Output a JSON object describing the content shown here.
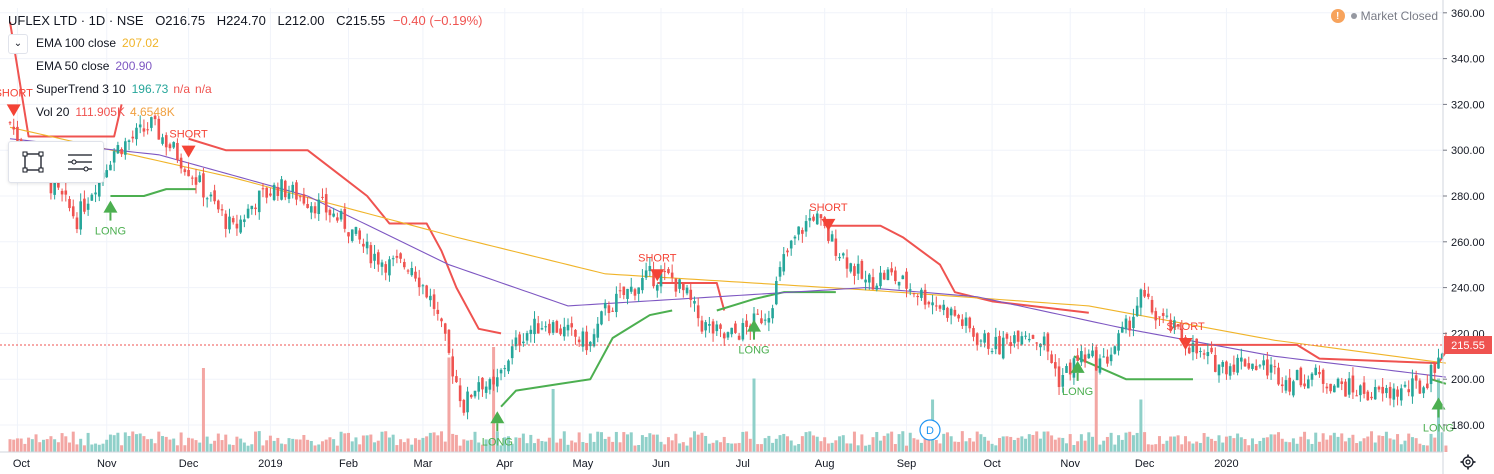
{
  "header": {
    "symbol": "UFLEX LTD · 1D · NSE",
    "open": "O216.75",
    "high": "H224.70",
    "low": "L212.00",
    "close": "C215.55",
    "change": "−0.40 (−0.19%)",
    "market_status": "Market Closed"
  },
  "indicators": [
    {
      "name": "EMA 100 close",
      "values": [
        "207.02"
      ],
      "colors": [
        "#f0b429"
      ]
    },
    {
      "name": "EMA 50 close",
      "values": [
        "200.90"
      ],
      "colors": [
        "#7e57c2"
      ]
    },
    {
      "name": "SuperTrend 3 10",
      "values": [
        "196.73",
        "n/a",
        "n/a"
      ],
      "colors": [
        "#26a69a",
        "#ef5350",
        "#ef5350"
      ]
    },
    {
      "name": "Vol 20",
      "values": [
        "111.905K",
        "4.6548K"
      ],
      "colors": [
        "#ef5350",
        "#f0a040"
      ]
    }
  ],
  "price_label": "215.55",
  "event_marker": "D",
  "colors": {
    "up": "#26a69a",
    "down": "#ef5350",
    "ema100": "#f0b429",
    "ema50": "#7e57c2",
    "st_up": "#4caf50",
    "st_down": "#ef5350",
    "vol_up": "#8fd0c9",
    "vol_down": "#f3a6a3"
  },
  "icons": [
    "rectangle-tool-icon",
    "lines-tool-icon",
    "chevron-down-icon",
    "warning-icon",
    "gear-icon"
  ],
  "chart_data": {
    "type": "candlestick",
    "x_tick_labels": [
      "Oct",
      "Nov",
      "Dec",
      "2019",
      "Feb",
      "Mar",
      "Apr",
      "May",
      "Jun",
      "Jul",
      "Aug",
      "Sep",
      "Oct",
      "Nov",
      "Dec",
      "2020"
    ],
    "y_tick_labels": [
      "180.00",
      "200.00",
      "220.00",
      "240.00",
      "260.00",
      "280.00",
      "300.00",
      "320.00",
      "340.00",
      "360.00"
    ],
    "ylim": [
      170,
      365
    ],
    "last_price": 215.55,
    "price_anchors": [
      [
        0,
        312
      ],
      [
        4,
        300
      ],
      [
        10,
        287
      ],
      [
        18,
        270
      ],
      [
        22,
        283
      ],
      [
        28,
        300
      ],
      [
        32,
        304
      ],
      [
        38,
        311
      ],
      [
        44,
        300
      ],
      [
        48,
        292
      ],
      [
        54,
        278
      ],
      [
        60,
        265
      ],
      [
        66,
        278
      ],
      [
        72,
        284
      ],
      [
        78,
        280
      ],
      [
        84,
        275
      ],
      [
        90,
        268
      ],
      [
        96,
        256
      ],
      [
        102,
        250
      ],
      [
        108,
        250
      ],
      [
        114,
        232
      ],
      [
        118,
        210
      ],
      [
        122,
        188
      ],
      [
        126,
        200
      ],
      [
        130,
        195
      ],
      [
        134,
        210
      ],
      [
        138,
        220
      ],
      [
        144,
        225
      ],
      [
        150,
        220
      ],
      [
        156,
        215
      ],
      [
        160,
        230
      ],
      [
        166,
        238
      ],
      [
        172,
        245
      ],
      [
        178,
        244
      ],
      [
        182,
        236
      ],
      [
        186,
        224
      ],
      [
        192,
        218
      ],
      [
        198,
        222
      ],
      [
        204,
        230
      ],
      [
        208,
        252
      ],
      [
        212,
        264
      ],
      [
        216,
        272
      ],
      [
        220,
        262
      ],
      [
        226,
        250
      ],
      [
        230,
        242
      ],
      [
        236,
        246
      ],
      [
        242,
        240
      ],
      [
        248,
        234
      ],
      [
        254,
        228
      ],
      [
        260,
        218
      ],
      [
        266,
        214
      ],
      [
        272,
        222
      ],
      [
        278,
        216
      ],
      [
        282,
        200
      ],
      [
        288,
        210
      ],
      [
        294,
        207
      ],
      [
        300,
        222
      ],
      [
        304,
        236
      ],
      [
        308,
        228
      ],
      [
        314,
        220
      ],
      [
        320,
        210
      ],
      [
        326,
        206
      ],
      [
        332,
        208
      ],
      [
        338,
        205
      ],
      [
        344,
        199
      ],
      [
        350,
        202
      ],
      [
        356,
        198
      ],
      [
        362,
        195
      ],
      [
        368,
        193
      ],
      [
        374,
        195
      ],
      [
        380,
        197
      ],
      [
        384,
        210
      ],
      [
        386,
        215.55
      ]
    ],
    "ema100_anchors": [
      [
        0,
        310
      ],
      [
        60,
        288
      ],
      [
        120,
        262
      ],
      [
        160,
        246
      ],
      [
        230,
        239
      ],
      [
        290,
        232
      ],
      [
        340,
        217
      ],
      [
        386,
        207.02
      ]
    ],
    "ema50_anchors": [
      [
        0,
        305
      ],
      [
        40,
        298
      ],
      [
        80,
        280
      ],
      [
        118,
        250
      ],
      [
        150,
        232
      ],
      [
        190,
        236
      ],
      [
        230,
        240
      ],
      [
        260,
        236
      ],
      [
        300,
        222
      ],
      [
        340,
        210
      ],
      [
        386,
        200.9
      ]
    ],
    "supertrend": [
      {
        "trend": "down",
        "points": [
          [
            0,
            356
          ],
          [
            5,
            306
          ],
          [
            28,
            306
          ],
          [
            30,
            320
          ]
        ]
      },
      {
        "trend": "up",
        "points": [
          [
            27,
            280
          ],
          [
            36,
            280
          ],
          [
            42,
            283
          ],
          [
            50,
            283
          ]
        ]
      },
      {
        "trend": "down",
        "points": [
          [
            48,
            305
          ],
          [
            58,
            300
          ],
          [
            80,
            300
          ],
          [
            88,
            290
          ],
          [
            96,
            280
          ],
          [
            102,
            268
          ],
          [
            112,
            268
          ],
          [
            116,
            256
          ],
          [
            120,
            240
          ],
          [
            126,
            222
          ],
          [
            132,
            220
          ]
        ]
      },
      {
        "trend": "up",
        "points": [
          [
            132,
            188
          ],
          [
            136,
            195
          ],
          [
            148,
            198
          ],
          [
            156,
            200
          ],
          [
            162,
            218
          ],
          [
            172,
            228
          ],
          [
            178,
            230
          ]
        ]
      },
      {
        "trend": "down",
        "points": [
          [
            174,
            242
          ],
          [
            190,
            242
          ],
          [
            192,
            230
          ]
        ]
      },
      {
        "trend": "up",
        "points": [
          [
            190,
            230
          ],
          [
            200,
            235
          ],
          [
            208,
            238
          ],
          [
            222,
            238
          ]
        ]
      },
      {
        "trend": "down",
        "points": [
          [
            220,
            267
          ],
          [
            234,
            267
          ],
          [
            240,
            262
          ],
          [
            250,
            250
          ],
          [
            254,
            238
          ],
          [
            264,
            234
          ],
          [
            290,
            229
          ]
        ]
      },
      {
        "trend": "up",
        "points": [
          [
            286,
            210
          ],
          [
            300,
            200
          ],
          [
            318,
            200
          ]
        ]
      },
      {
        "trend": "down",
        "points": [
          [
            316,
            215
          ],
          [
            346,
            215
          ],
          [
            352,
            209
          ],
          [
            384,
            207
          ],
          [
            386,
            212
          ]
        ]
      },
      {
        "trend": "up",
        "points": [
          [
            382,
            200
          ],
          [
            386,
            198
          ]
        ]
      }
    ],
    "signals": [
      {
        "label": "SHORT",
        "type": "short",
        "index": 1,
        "price": 320
      },
      {
        "label": "LONG",
        "type": "long",
        "index": 27,
        "price": 278
      },
      {
        "label": "SHORT",
        "type": "short",
        "index": 48,
        "price": 302
      },
      {
        "label": "LONG",
        "type": "long",
        "index": 131,
        "price": 186
      },
      {
        "label": "SHORT",
        "type": "short",
        "index": 174,
        "price": 248
      },
      {
        "label": "LONG",
        "type": "long",
        "index": 200,
        "price": 226
      },
      {
        "label": "SHORT",
        "type": "short",
        "index": 220,
        "price": 270
      },
      {
        "label": "LONG",
        "type": "long",
        "index": 287,
        "price": 208
      },
      {
        "label": "SHORT",
        "type": "short",
        "index": 316,
        "price": 218
      },
      {
        "label": "LONG",
        "type": "long",
        "index": 384,
        "price": 192
      }
    ],
    "bars": 387,
    "month_start_index": [
      2,
      26,
      48,
      70,
      91,
      111,
      133,
      154,
      175,
      197,
      219,
      241,
      264,
      285,
      305,
      327
    ],
    "volume_spikes": [
      [
        52,
        0.8
      ],
      [
        118,
        0.9
      ],
      [
        130,
        1.0
      ],
      [
        146,
        0.6
      ],
      [
        200,
        0.7
      ],
      [
        248,
        0.5
      ],
      [
        292,
        1.0
      ],
      [
        304,
        0.5
      ],
      [
        384,
        0.7
      ]
    ]
  }
}
